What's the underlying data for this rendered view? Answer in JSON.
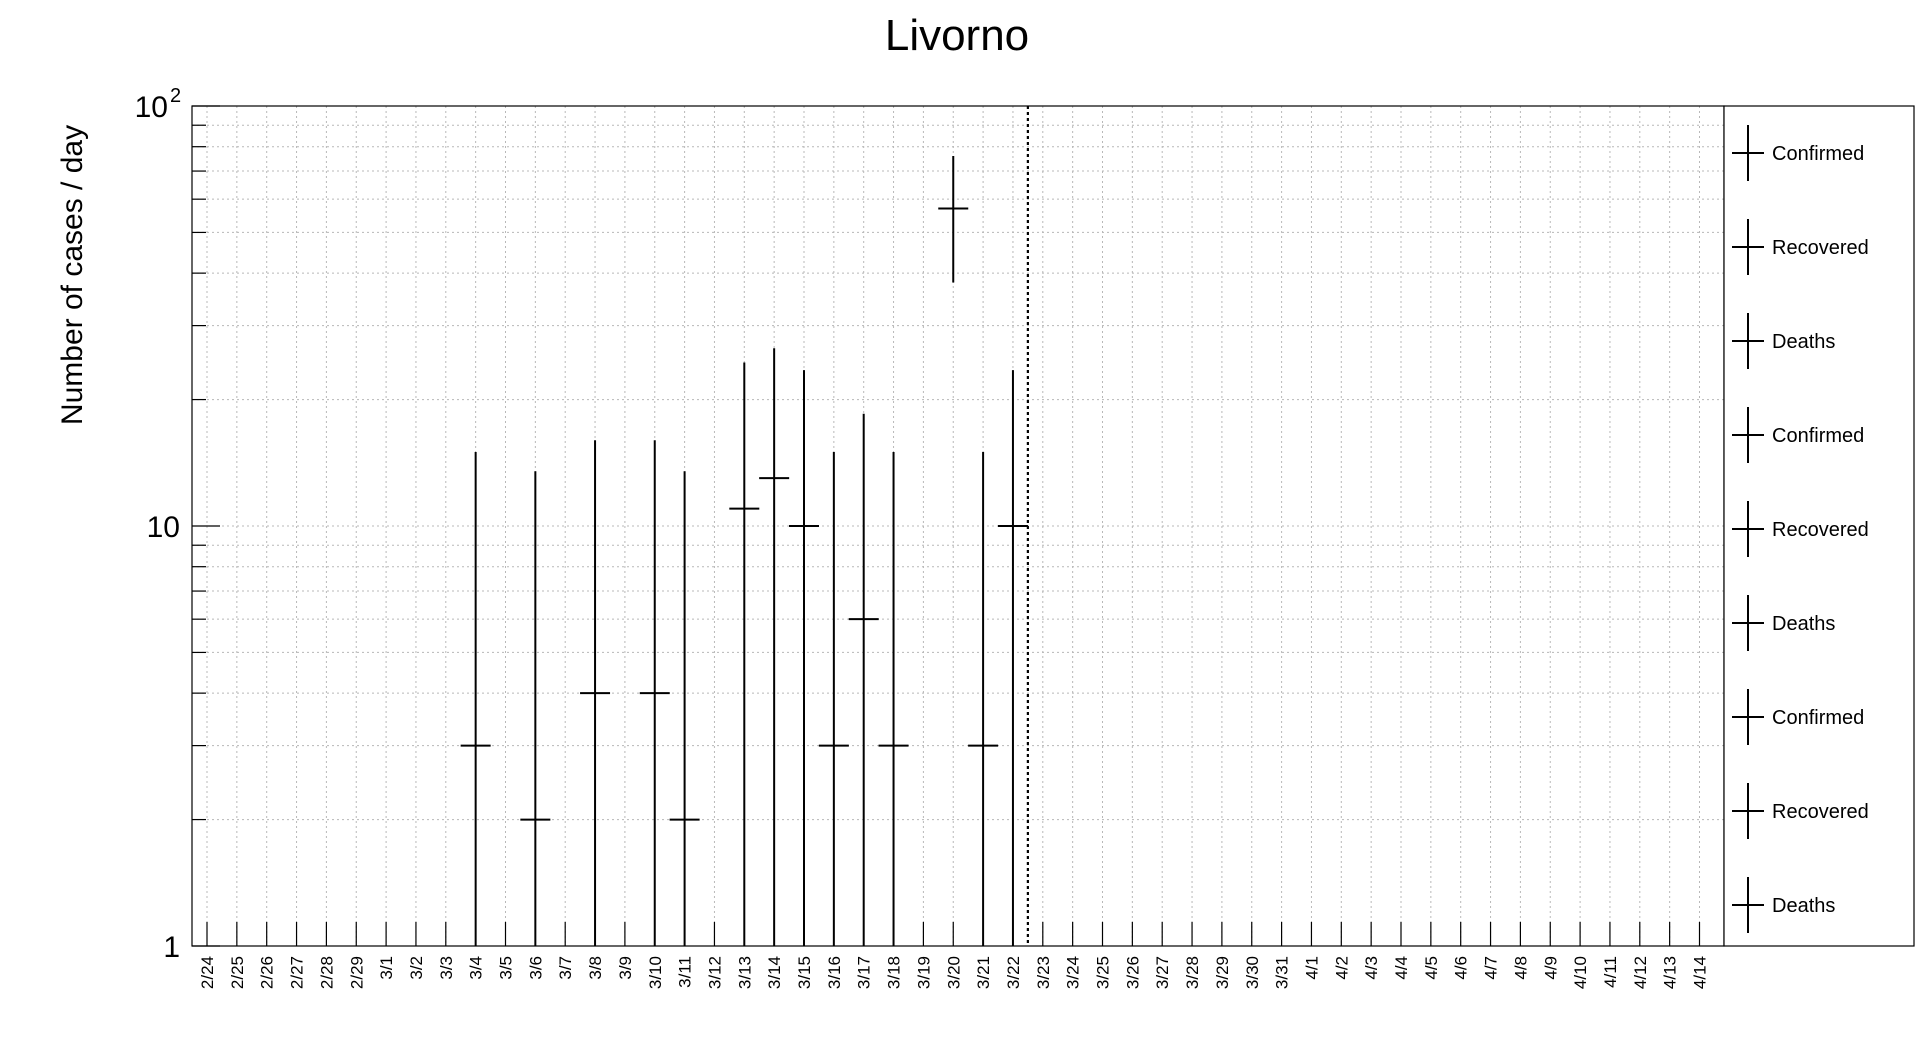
{
  "chart_data": {
    "type": "scatter",
    "title": "Livorno",
    "xlabel": "",
    "ylabel": "Number of cases / day",
    "y_scale": "log",
    "ylim": [
      1,
      100
    ],
    "y_ticks": [
      "1",
      "10",
      "10"
    ],
    "y_tick_exponent": "2",
    "grid": true,
    "legend_position": "right",
    "categories": [
      "2/24",
      "2/25",
      "2/26",
      "2/27",
      "2/28",
      "2/29",
      "3/1",
      "3/2",
      "3/3",
      "3/4",
      "3/5",
      "3/6",
      "3/7",
      "3/8",
      "3/9",
      "3/10",
      "3/11",
      "3/12",
      "3/13",
      "3/14",
      "3/15",
      "3/16",
      "3/17",
      "3/18",
      "3/19",
      "3/20",
      "3/21",
      "3/22",
      "3/23",
      "3/24",
      "3/25",
      "3/26",
      "3/27",
      "3/28",
      "3/29",
      "3/30",
      "3/31",
      "4/1",
      "4/2",
      "4/3",
      "4/4",
      "4/5",
      "4/6",
      "4/7",
      "4/8",
      "4/9",
      "4/10",
      "4/11",
      "4/12",
      "4/13",
      "4/14"
    ],
    "marker_date": "3/22",
    "series": [
      {
        "name": "Confirmed",
        "points": [
          {
            "x": "3/4",
            "y": 3,
            "y_low": 0.8,
            "y_high": 15
          },
          {
            "x": "3/6",
            "y": 2,
            "y_low": 0.8,
            "y_high": 13.5
          },
          {
            "x": "3/8",
            "y": 4,
            "y_low": 0.8,
            "y_high": 16
          },
          {
            "x": "3/10",
            "y": 4,
            "y_low": 0.8,
            "y_high": 16
          },
          {
            "x": "3/11",
            "y": 2,
            "y_low": 0.8,
            "y_high": 13.5
          },
          {
            "x": "3/13",
            "y": 11,
            "y_low": 0.8,
            "y_high": 24.5
          },
          {
            "x": "3/14",
            "y": 13,
            "y_low": 0.8,
            "y_high": 26.5
          },
          {
            "x": "3/15",
            "y": 10,
            "y_low": 0.8,
            "y_high": 23.5
          },
          {
            "x": "3/16",
            "y": 3,
            "y_low": 0.8,
            "y_high": 15
          },
          {
            "x": "3/17",
            "y": 6,
            "y_low": 0.8,
            "y_high": 18.5
          },
          {
            "x": "3/18",
            "y": 3,
            "y_low": 0.8,
            "y_high": 15
          },
          {
            "x": "3/20",
            "y": 57,
            "y_low": 38,
            "y_high": 76
          },
          {
            "x": "3/21",
            "y": 3,
            "y_low": 0.8,
            "y_high": 15
          },
          {
            "x": "3/22",
            "y": 10,
            "y_low": 0.8,
            "y_high": 23.5
          }
        ]
      }
    ],
    "legend": [
      "Confirmed",
      "Recovered",
      "Deaths",
      "Confirmed",
      "Recovered",
      "Deaths",
      "Confirmed",
      "Recovered",
      "Deaths"
    ]
  }
}
